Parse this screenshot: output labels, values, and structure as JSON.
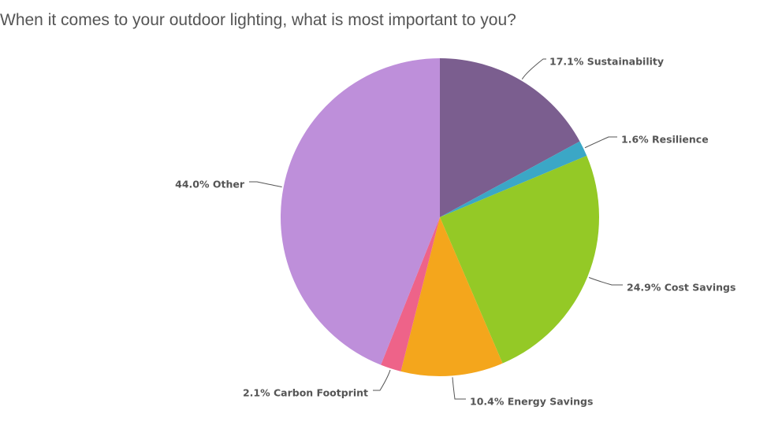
{
  "chart_data": {
    "type": "pie",
    "title": "When it comes to your outdoor lighting, what is most important to you?",
    "slices": [
      {
        "label": "17.1% Sustainability",
        "name": "Sustainability",
        "value": 17.1,
        "color": "#7b5e8f"
      },
      {
        "label": "1.6% Resilience",
        "name": "Resilience",
        "value": 1.6,
        "color": "#3ba7c6"
      },
      {
        "label": "24.9% Cost Savings",
        "name": "Cost Savings",
        "value": 24.9,
        "color": "#94c926"
      },
      {
        "label": "10.4% Energy Savings",
        "name": "Energy Savings",
        "value": 10.4,
        "color": "#f4a61c"
      },
      {
        "label": "2.1% Carbon Footprint",
        "name": "Carbon Footprint",
        "value": 2.1,
        "color": "#ee6389"
      },
      {
        "label": "44.0% Other",
        "name": "Other",
        "value": 44.0,
        "color": "#be8fda"
      }
    ],
    "start_angle": "top",
    "direction": "clockwise"
  }
}
